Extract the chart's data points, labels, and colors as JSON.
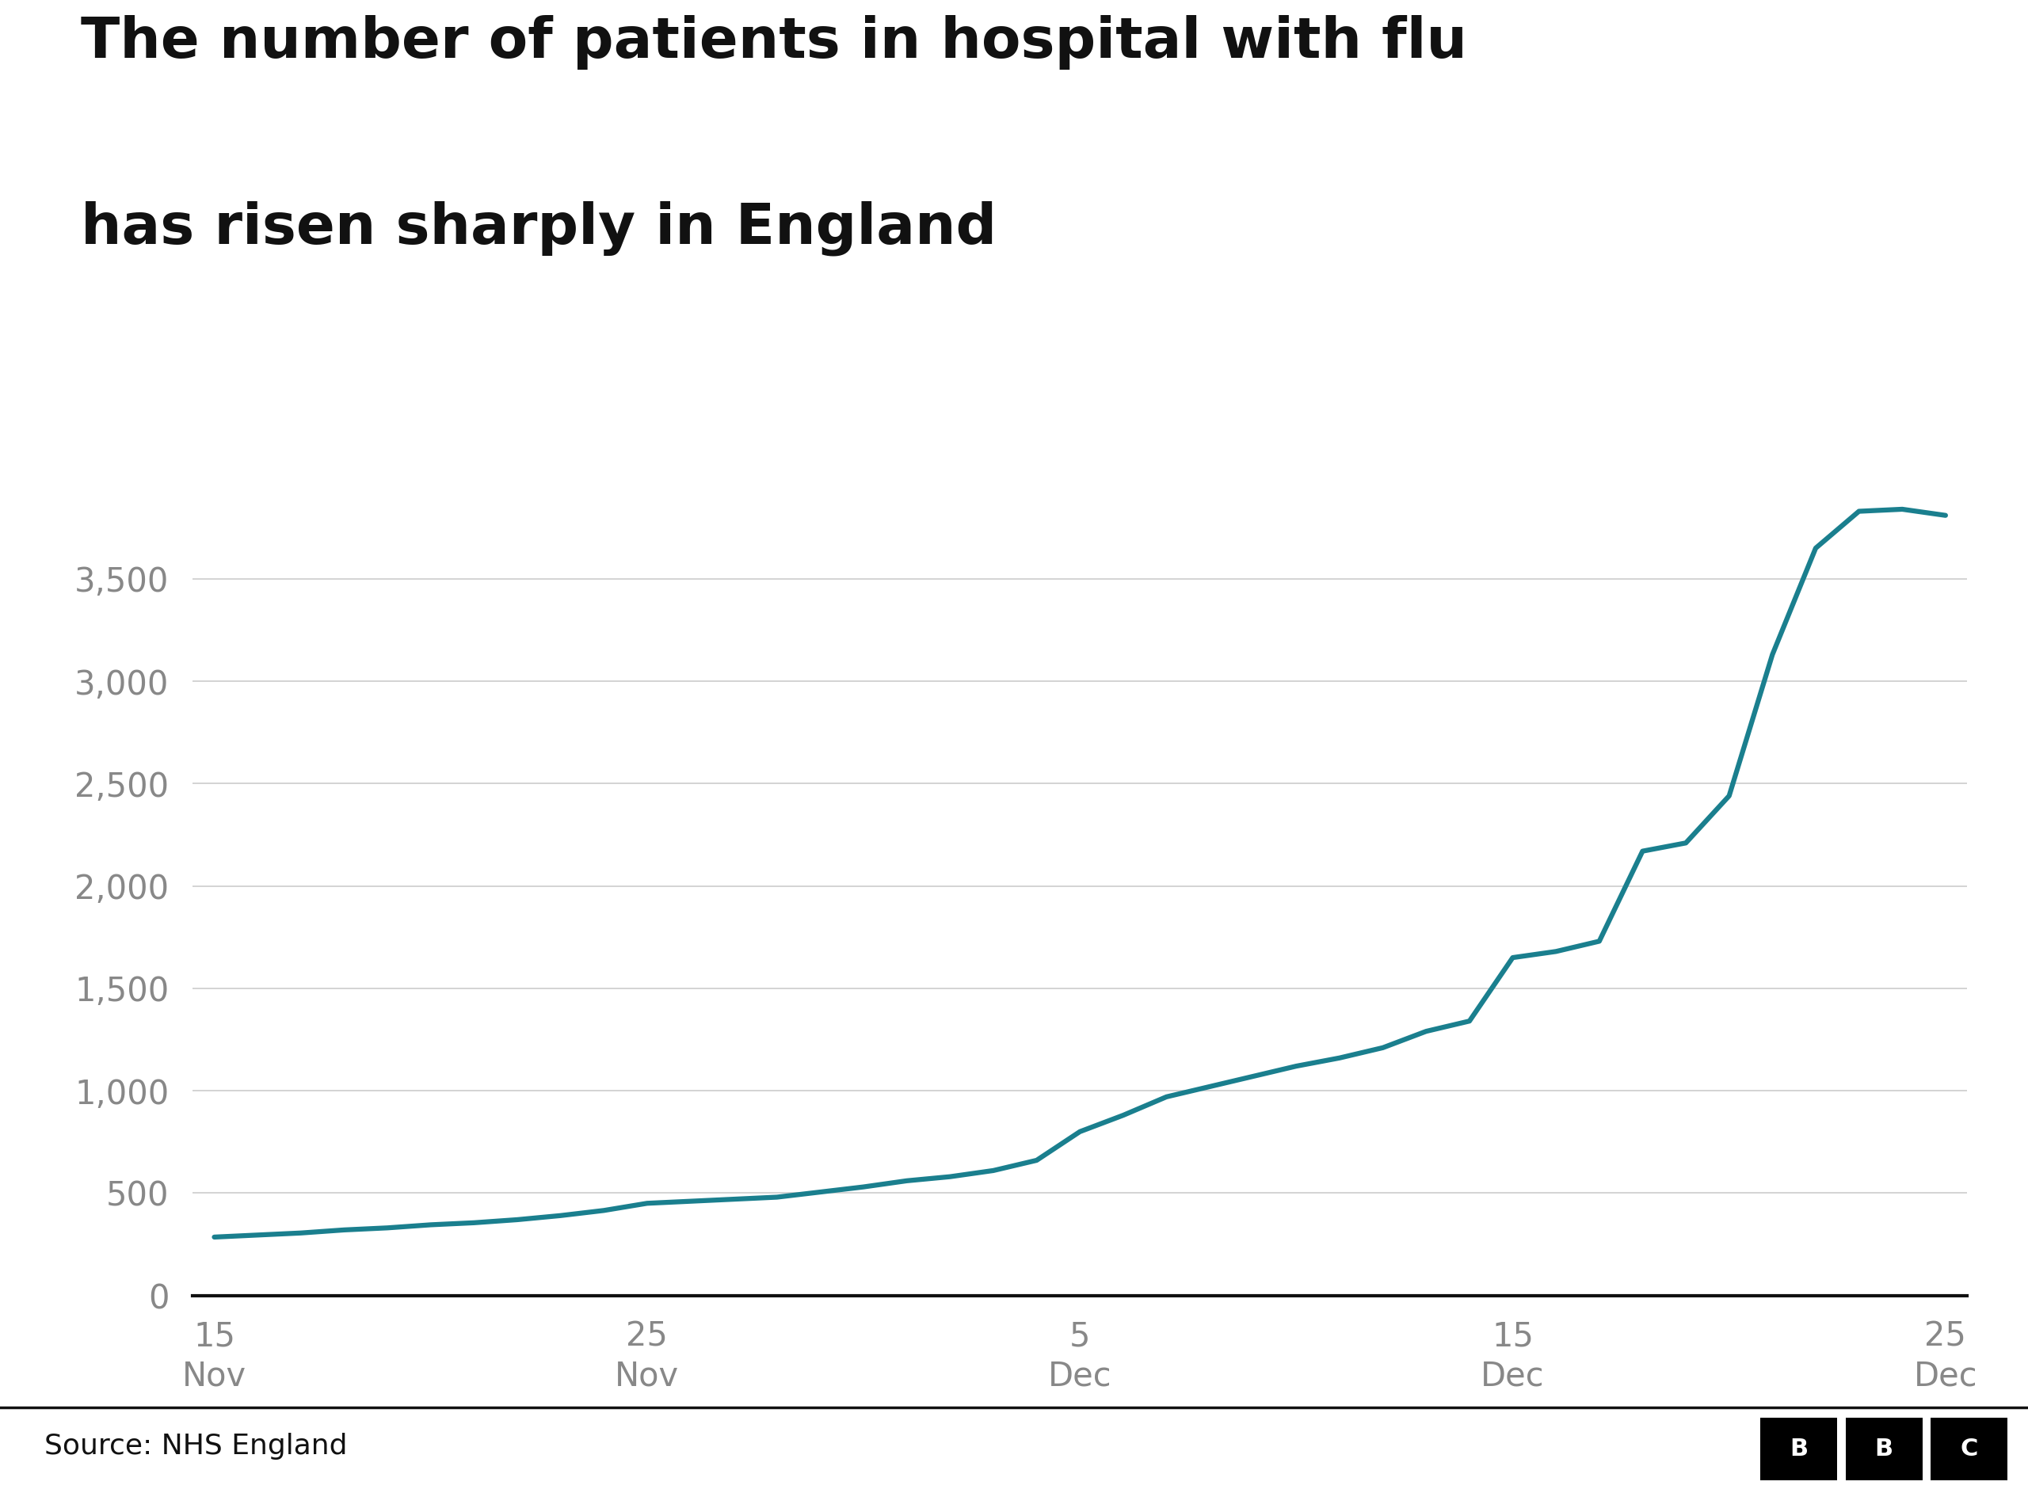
{
  "title_line1": "The number of patients in hospital with flu",
  "title_line2": "has risen sharply in England",
  "source": "Source: NHS England",
  "line_color": "#1a7f8e",
  "background_color": "#ffffff",
  "grid_color": "#cccccc",
  "title_fontsize": 52,
  "ytick_fontsize": 30,
  "xtick_fontsize": 30,
  "source_fontsize": 26,
  "line_width": 4.5,
  "ylim": [
    0,
    4000
  ],
  "yticks": [
    0,
    500,
    1000,
    1500,
    2000,
    2500,
    3000,
    3500
  ],
  "tick_positions": [
    0,
    10,
    20,
    30,
    40
  ],
  "x_tick_labels_line1": [
    "15",
    "25",
    "5",
    "15",
    "25"
  ],
  "x_tick_labels_line2": [
    "Nov",
    "Nov",
    "Dec",
    "Dec",
    "Dec"
  ],
  "values": [
    285,
    295,
    305,
    320,
    330,
    345,
    355,
    370,
    390,
    415,
    450,
    460,
    470,
    480,
    505,
    530,
    560,
    580,
    610,
    660,
    800,
    880,
    970,
    1020,
    1070,
    1120,
    1160,
    1210,
    1290,
    1340,
    1650,
    1680,
    1730,
    2170,
    2210,
    2440,
    3130,
    3650,
    3830,
    3840,
    3810
  ]
}
